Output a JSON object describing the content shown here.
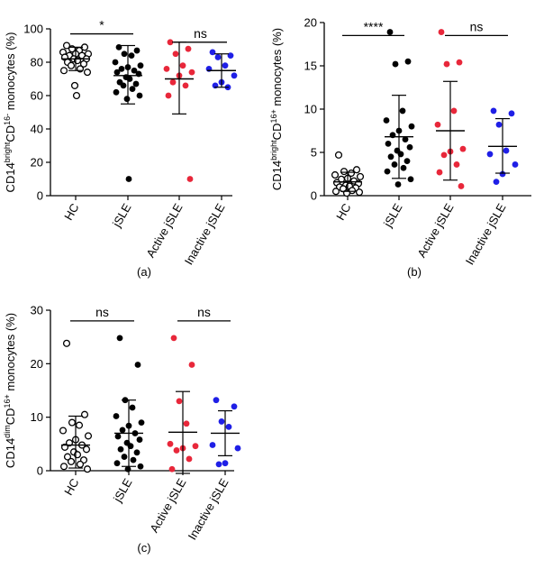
{
  "chart_data": [
    {
      "type": "scatter",
      "panel_label": "(a)",
      "ylabel": {
        "main": "CD14",
        "sup1": "bright",
        "mid": "CD",
        "sub": "16-",
        "end": " monocytes (%)"
      },
      "ylim": [
        0,
        100
      ],
      "yticks": [
        0,
        20,
        40,
        60,
        80,
        100
      ],
      "categories": [
        "HC",
        "jSLE",
        "Active jSLE",
        "Inactive jSLE"
      ],
      "series": [
        {
          "name": "HC",
          "marker": "open",
          "color": "#000000",
          "values": [
            90,
            89,
            88,
            87,
            86,
            85,
            85,
            84,
            84,
            83,
            82,
            82,
            81,
            80,
            79,
            78,
            76,
            75,
            74,
            66,
            60
          ],
          "mean": 82,
          "sd_low": 75,
          "sd_high": 89
        },
        {
          "name": "jSLE",
          "marker": "filled",
          "color": "#000000",
          "values": [
            89,
            87,
            85,
            84,
            80,
            78,
            77,
            76,
            75,
            74,
            73,
            71,
            70,
            68,
            67,
            66,
            64,
            62,
            60,
            58,
            10
          ],
          "mean": 72,
          "sd_low": 55,
          "sd_high": 90
        },
        {
          "name": "Active jSLE",
          "marker": "filled",
          "color": "#e8273a",
          "values": [
            92,
            88,
            85,
            78,
            76,
            74,
            72,
            68,
            66,
            60,
            10
          ],
          "mean": 70,
          "sd_low": 49,
          "sd_high": 92
        },
        {
          "name": "Inactive jSLE",
          "marker": "filled",
          "color": "#1f1fe6",
          "values": [
            86,
            84,
            83,
            78,
            76,
            72,
            68,
            66,
            65
          ],
          "mean": 75,
          "sd_low": 65,
          "sd_high": 85
        }
      ],
      "significance": [
        {
          "from": 0,
          "to": 1,
          "label": "*",
          "y": 97
        },
        {
          "from": 2,
          "to": 3,
          "label": "ns",
          "y": 92
        }
      ]
    },
    {
      "type": "scatter",
      "panel_label": "(b)",
      "ylabel": {
        "main": "CD14",
        "sup1": "bright",
        "mid": "CD",
        "sub": "16+",
        "end": " monocytes (%)"
      },
      "ylim": [
        0,
        20
      ],
      "yticks": [
        0,
        5,
        10,
        15,
        20
      ],
      "categories": [
        "HC",
        "jSLE",
        "Active jSLE",
        "Inactive jSLE"
      ],
      "series": [
        {
          "name": "HC",
          "marker": "open",
          "color": "#000000",
          "values": [
            4.7,
            3.0,
            2.8,
            2.6,
            2.4,
            2.2,
            2.0,
            1.9,
            1.7,
            1.5,
            1.4,
            1.2,
            1.1,
            1.0,
            0.9,
            0.8,
            0.6,
            0.5,
            0.4,
            0.3
          ],
          "mean": 1.6,
          "sd_low": 0.5,
          "sd_high": 2.7
        },
        {
          "name": "jSLE",
          "marker": "filled",
          "color": "#000000",
          "values": [
            18.9,
            15.5,
            15.2,
            9.8,
            8.7,
            8.0,
            7.5,
            7.0,
            6.5,
            6.0,
            5.6,
            5.2,
            4.8,
            4.5,
            4.0,
            3.6,
            3.2,
            2.8,
            1.9,
            1.3
          ],
          "mean": 6.8,
          "sd_low": 2.0,
          "sd_high": 11.6
        },
        {
          "name": "Active jSLE",
          "marker": "filled",
          "color": "#e8273a",
          "values": [
            18.9,
            15.4,
            15.2,
            9.8,
            8.2,
            5.4,
            5.1,
            4.7,
            3.6,
            2.7,
            1.1
          ],
          "mean": 7.5,
          "sd_low": 1.8,
          "sd_high": 13.2
        },
        {
          "name": "Inactive jSLE",
          "marker": "filled",
          "color": "#1f1fe6",
          "values": [
            9.8,
            9.5,
            8.2,
            5.2,
            4.8,
            3.6,
            2.5,
            1.6
          ],
          "mean": 5.7,
          "sd_low": 2.6,
          "sd_high": 8.9
        }
      ],
      "significance": [
        {
          "from": 0,
          "to": 1,
          "label": "****",
          "y": 18.5
        },
        {
          "from": 2,
          "to": 3,
          "label": "ns",
          "y": 18.5
        }
      ]
    },
    {
      "type": "scatter",
      "panel_label": "(c)",
      "ylabel": {
        "main": "CD14",
        "sup1": "dim",
        "mid": "CD",
        "sub": "16+",
        "end": " monocytes (%)"
      },
      "ylim": [
        0,
        30
      ],
      "yticks": [
        0,
        10,
        20,
        30
      ],
      "categories": [
        "HC",
        "jSLE",
        "Active jSLE",
        "Inactive jSLE"
      ],
      "series": [
        {
          "name": "HC",
          "marker": "open",
          "color": "#000000",
          "values": [
            23.8,
            10.5,
            9.0,
            8.5,
            7.5,
            6.5,
            5.8,
            5.2,
            4.8,
            4.4,
            4.0,
            3.5,
            3.0,
            2.6,
            2.0,
            1.7,
            1.2,
            0.8,
            0.3
          ],
          "mean": 4.8,
          "sd_low": 0.5,
          "sd_high": 10.2
        },
        {
          "name": "jSLE",
          "marker": "filled",
          "color": "#000000",
          "values": [
            24.8,
            19.8,
            13.2,
            11.8,
            10.2,
            9.0,
            8.4,
            7.6,
            7.0,
            6.4,
            5.8,
            5.2,
            4.6,
            4.0,
            3.4,
            2.6,
            2.0,
            1.4,
            0.8,
            0.3
          ],
          "mean": 7.0,
          "sd_low": 0.8,
          "sd_high": 13.2
        },
        {
          "name": "Active jSLE",
          "marker": "filled",
          "color": "#e8273a",
          "values": [
            24.8,
            19.8,
            13.0,
            8.8,
            5.0,
            4.6,
            4.2,
            3.8,
            2.2,
            0.3
          ],
          "mean": 7.2,
          "sd_low": -0.5,
          "sd_high": 14.8
        },
        {
          "name": "Inactive jSLE",
          "marker": "filled",
          "color": "#1f1fe6",
          "values": [
            13.2,
            12.0,
            9.2,
            8.2,
            4.8,
            4.2,
            1.4,
            1.2
          ],
          "mean": 7.0,
          "sd_low": 2.8,
          "sd_high": 11.2
        }
      ],
      "significance": [
        {
          "from": 0,
          "to": 1,
          "label": "ns",
          "y": 28
        },
        {
          "from": 2,
          "to": 3,
          "label": "ns",
          "y": 28
        }
      ]
    }
  ]
}
